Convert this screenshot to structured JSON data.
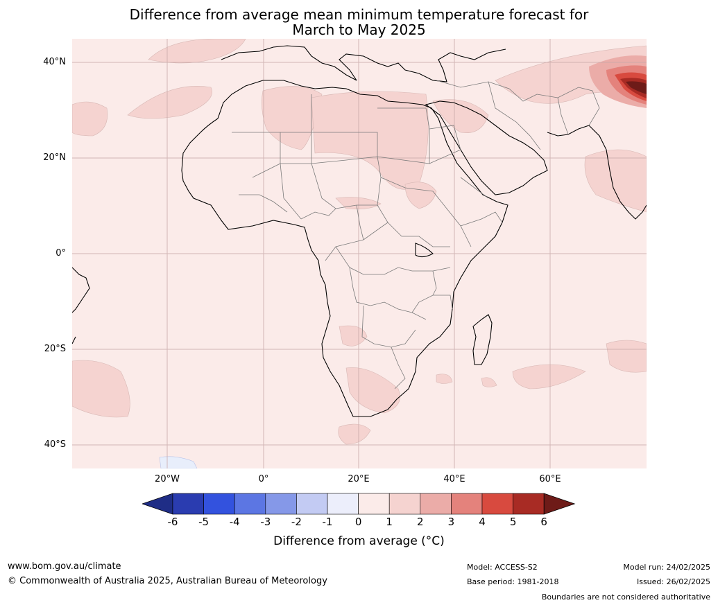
{
  "title": {
    "line1": "Difference from average mean minimum temperature forecast for",
    "line2": "March to May 2025"
  },
  "map": {
    "lat_labels": [
      "40°N",
      "20°N",
      "0°",
      "20°S",
      "40°S"
    ],
    "lon_labels": [
      "20°W",
      "0°",
      "20°E",
      "40°E",
      "60°E"
    ],
    "colors": {
      "ocean_land_base": "#fbebe9",
      "anomaly_1_2": "#f5d3d0",
      "anomaly_2_3": "#ebaca8",
      "anomaly_3_4": "#e4827c",
      "anomaly_4_5": "#d84a3f",
      "anomaly_5_6": "#a82b24",
      "anomaly_above_6": "#6e1b18",
      "negative_light": "#e8eefb",
      "coastline": "#000000",
      "borders": "#7a7a7a",
      "gridlines": "#c9a9a9"
    }
  },
  "colorbar": {
    "ticks": [
      "-6",
      "-5",
      "-4",
      "-3",
      "-2",
      "-1",
      "0",
      "1",
      "2",
      "3",
      "4",
      "5",
      "6"
    ],
    "colors": [
      "#1f2d86",
      "#2a3cb0",
      "#3352de",
      "#5c76e3",
      "#8598e8",
      "#c3cbf3",
      "#eceefb",
      "#fbebe9",
      "#f5d3d0",
      "#ebaca8",
      "#e4827c",
      "#d84a3f",
      "#a82b24",
      "#6e1b18"
    ],
    "label": "Difference from average (°C)"
  },
  "footer": {
    "website": "www.bom.gov.au/climate",
    "copyright": "© Commonwealth of Australia 2025, Australian Bureau of Meteorology",
    "model": "Model: ACCESS-S2",
    "base_period": "Base period: 1981-2018",
    "model_run": "Model run: 24/02/2025",
    "issued": "Issued: 26/02/2025",
    "boundaries": "Boundaries are not considered authoritative"
  }
}
